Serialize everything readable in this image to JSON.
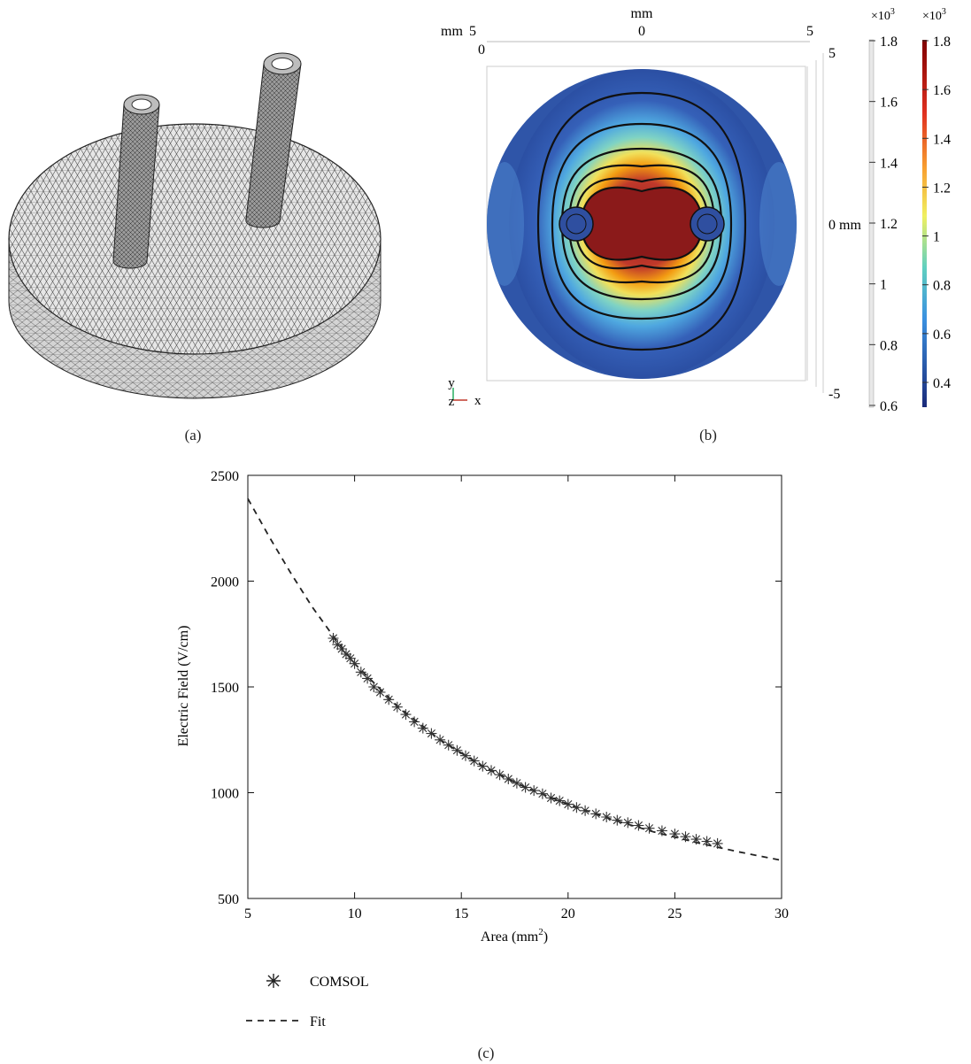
{
  "panel_a": {
    "caption": "(a)"
  },
  "panel_b": {
    "caption": "(b)",
    "top_axis": {
      "unit": "mm",
      "unit_left": "mm",
      "ticks": [
        "5",
        "0",
        "5"
      ],
      "corner_tick": "0"
    },
    "right_axis": {
      "ticks": [
        "5",
        "0 mm",
        "-5"
      ]
    },
    "triad": {
      "x": "x",
      "y": "y",
      "z": "z"
    },
    "colorbar_gray": {
      "multiplier": "×10",
      "multiplier_exp": "3",
      "ticks": [
        "1.8",
        "1.6",
        "1.4",
        "1.2",
        "1",
        "0.8",
        "0.6"
      ]
    },
    "colorbar_color": {
      "multiplier": "×10",
      "multiplier_exp": "3",
      "ticks": [
        "1.8",
        "1.6",
        "1.4",
        "1.2",
        "1",
        "0.8",
        "0.6",
        "0.4"
      ]
    },
    "colors": {
      "background_low": "#2b4fa3",
      "high": "#8b1a1a"
    }
  },
  "panel_c": {
    "caption": "(c)"
  },
  "chart_data": {
    "type": "scatter",
    "xlabel": "Area (mm",
    "xlabel_sup": "2",
    "xlabel_end": ")",
    "ylabel": "Electric Field (V/cm)",
    "xlim": [
      5,
      30
    ],
    "ylim": [
      500,
      2500
    ],
    "xticks": [
      5,
      10,
      15,
      20,
      25,
      30
    ],
    "yticks": [
      500,
      1000,
      1500,
      2000,
      2500
    ],
    "legend_position": "bottom-left",
    "series": [
      {
        "name": "COMSOL",
        "style": "asterisk",
        "x": [
          9.0,
          9.2,
          9.4,
          9.6,
          9.8,
          10.0,
          10.3,
          10.6,
          10.9,
          11.2,
          11.6,
          12.0,
          12.4,
          12.8,
          13.2,
          13.6,
          14.0,
          14.4,
          14.8,
          15.2,
          15.6,
          16.0,
          16.4,
          16.8,
          17.2,
          17.6,
          18.0,
          18.4,
          18.8,
          19.2,
          19.6,
          20.0,
          20.4,
          20.8,
          21.3,
          21.8,
          22.3,
          22.8,
          23.3,
          23.8,
          24.4,
          25.0,
          25.5,
          26.0,
          26.5,
          27.0
        ],
        "y": [
          1730,
          1700,
          1680,
          1655,
          1635,
          1610,
          1570,
          1540,
          1500,
          1475,
          1440,
          1405,
          1370,
          1335,
          1305,
          1280,
          1250,
          1225,
          1200,
          1175,
          1150,
          1125,
          1105,
          1085,
          1065,
          1045,
          1025,
          1010,
          995,
          975,
          962,
          945,
          930,
          915,
          900,
          885,
          870,
          858,
          845,
          832,
          820,
          805,
          792,
          780,
          770,
          760
        ]
      },
      {
        "name": "Fit",
        "style": "dashed",
        "x": [
          5,
          6,
          7,
          8,
          9,
          10,
          12,
          14,
          16,
          18,
          20,
          22,
          24,
          26,
          28,
          30
        ],
        "y": [
          2390,
          2210,
          2040,
          1880,
          1740,
          1610,
          1410,
          1250,
          1125,
          1025,
          945,
          875,
          815,
          765,
          720,
          680
        ]
      }
    ]
  }
}
